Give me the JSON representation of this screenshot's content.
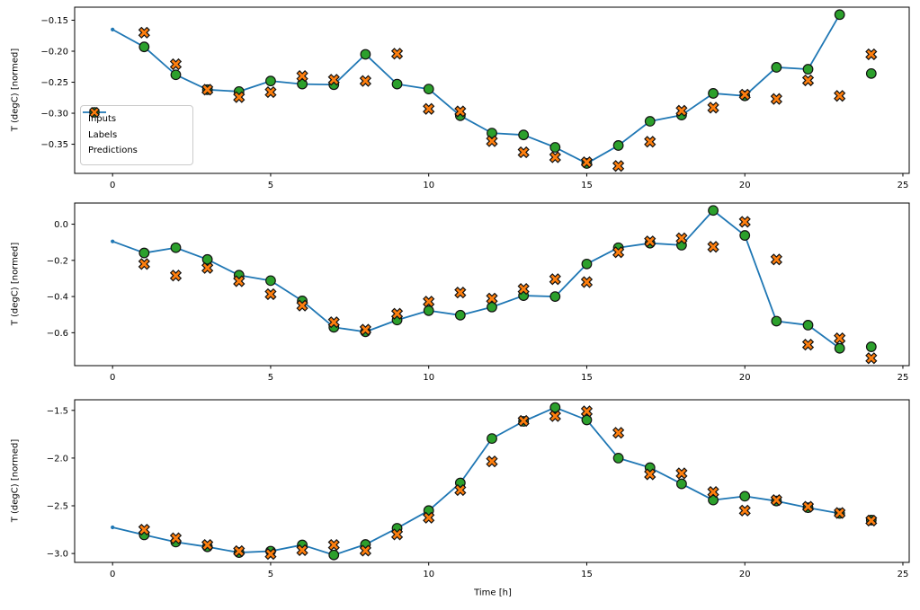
{
  "figure": {
    "background": "#ffffff",
    "text_color": "#000000",
    "legend": {
      "position": "inside-upper-left-panel-1",
      "items": [
        {
          "label": "Inputs",
          "marker": "line-with-dot",
          "color": "#1f77b4"
        },
        {
          "label": "Labels",
          "marker": "circle",
          "color": "#2ca02c"
        },
        {
          "label": "Predictions",
          "marker": "x-cross",
          "color": "#ff7f0e"
        }
      ]
    }
  },
  "chart_data": [
    {
      "type": "line",
      "panel": "top",
      "title": "",
      "xlabel": "",
      "ylabel": "T (degC) [normed]",
      "xlim": [
        -1.2,
        25.2
      ],
      "ylim": [
        -0.397,
        -0.129
      ],
      "grid": false,
      "x_ticks": [
        {
          "v": 0,
          "label": "0"
        },
        {
          "v": 5,
          "label": "5"
        },
        {
          "v": 10,
          "label": "10"
        },
        {
          "v": 15,
          "label": "15"
        },
        {
          "v": 20,
          "label": "20"
        },
        {
          "v": 25,
          "label": "25"
        }
      ],
      "y_ticks": [
        {
          "v": -0.15,
          "label": "−0.15"
        },
        {
          "v": -0.2,
          "label": "−0.20"
        },
        {
          "v": -0.25,
          "label": "−0.25"
        },
        {
          "v": -0.3,
          "label": "−0.30"
        },
        {
          "v": -0.35,
          "label": "−0.35"
        }
      ],
      "series": [
        {
          "name": "Inputs",
          "type": "line",
          "marker": "dot",
          "color": "#1f77b4",
          "x": [
            0,
            1,
            2,
            3,
            4,
            5,
            6,
            7,
            8,
            9,
            10,
            11,
            12,
            13,
            14,
            15,
            16,
            17,
            18,
            19,
            20,
            21,
            22,
            23
          ],
          "y": [
            -0.165,
            -0.193,
            -0.238,
            -0.262,
            -0.265,
            -0.248,
            -0.253,
            -0.254,
            -0.205,
            -0.253,
            -0.261,
            -0.304,
            -0.332,
            -0.335,
            -0.355,
            -0.381,
            -0.352,
            -0.313,
            -0.303,
            -0.268,
            -0.272,
            -0.226,
            -0.229,
            -0.141
          ]
        },
        {
          "name": "Labels",
          "type": "scatter",
          "marker": "circle",
          "color": "#2ca02c",
          "edge": "#111111",
          "x": [
            1,
            2,
            3,
            4,
            5,
            6,
            7,
            8,
            9,
            10,
            11,
            12,
            13,
            14,
            15,
            16,
            17,
            18,
            19,
            20,
            21,
            22,
            23,
            24
          ],
          "y": [
            -0.193,
            -0.238,
            -0.262,
            -0.265,
            -0.248,
            -0.253,
            -0.254,
            -0.205,
            -0.253,
            -0.261,
            -0.304,
            -0.332,
            -0.335,
            -0.355,
            -0.381,
            -0.352,
            -0.313,
            -0.303,
            -0.268,
            -0.272,
            -0.226,
            -0.229,
            -0.141,
            -0.236
          ]
        },
        {
          "name": "Predictions",
          "type": "scatter",
          "marker": "X",
          "color": "#ff7f0e",
          "edge": "#111111",
          "x": [
            1,
            2,
            3,
            4,
            5,
            6,
            7,
            8,
            9,
            10,
            11,
            12,
            13,
            14,
            15,
            16,
            17,
            18,
            19,
            20,
            21,
            22,
            23,
            24
          ],
          "y": [
            -0.17,
            -0.221,
            -0.262,
            -0.274,
            -0.266,
            -0.24,
            -0.246,
            -0.248,
            -0.204,
            -0.293,
            -0.297,
            -0.345,
            -0.363,
            -0.371,
            -0.379,
            -0.385,
            -0.346,
            -0.296,
            -0.291,
            -0.27,
            -0.277,
            -0.247,
            -0.272,
            -0.205
          ]
        }
      ]
    },
    {
      "type": "line",
      "panel": "middle",
      "title": "",
      "xlabel": "",
      "ylabel": "T (degC) [normed]",
      "xlim": [
        -1.2,
        25.2
      ],
      "ylim": [
        -0.782,
        0.117
      ],
      "grid": false,
      "x_ticks": [
        {
          "v": 0,
          "label": "0"
        },
        {
          "v": 5,
          "label": "5"
        },
        {
          "v": 10,
          "label": "10"
        },
        {
          "v": 15,
          "label": "15"
        },
        {
          "v": 20,
          "label": "20"
        },
        {
          "v": 25,
          "label": "25"
        }
      ],
      "y_ticks": [
        {
          "v": 0.0,
          "label": "0.0"
        },
        {
          "v": -0.2,
          "label": "−0.2"
        },
        {
          "v": -0.4,
          "label": "−0.4"
        },
        {
          "v": -0.6,
          "label": "−0.6"
        }
      ],
      "series": [
        {
          "name": "Inputs",
          "type": "line",
          "marker": "dot",
          "color": "#1f77b4",
          "x": [
            0,
            1,
            2,
            3,
            4,
            5,
            6,
            7,
            8,
            9,
            10,
            11,
            12,
            13,
            14,
            15,
            16,
            17,
            18,
            19,
            20,
            21,
            22,
            23
          ],
          "y": [
            -0.095,
            -0.159,
            -0.13,
            -0.195,
            -0.282,
            -0.312,
            -0.424,
            -0.57,
            -0.595,
            -0.53,
            -0.478,
            -0.503,
            -0.458,
            -0.395,
            -0.4,
            -0.22,
            -0.13,
            -0.105,
            -0.116,
            0.076,
            -0.062,
            -0.536,
            -0.558,
            -0.686
          ]
        },
        {
          "name": "Labels",
          "type": "scatter",
          "marker": "circle",
          "color": "#2ca02c",
          "edge": "#111111",
          "x": [
            1,
            2,
            3,
            4,
            5,
            6,
            7,
            8,
            9,
            10,
            11,
            12,
            13,
            14,
            15,
            16,
            17,
            18,
            19,
            20,
            21,
            22,
            23,
            24
          ],
          "y": [
            -0.159,
            -0.13,
            -0.195,
            -0.282,
            -0.312,
            -0.424,
            -0.57,
            -0.595,
            -0.53,
            -0.478,
            -0.503,
            -0.458,
            -0.395,
            -0.4,
            -0.22,
            -0.13,
            -0.105,
            -0.116,
            0.076,
            -0.062,
            -0.536,
            -0.558,
            -0.686,
            -0.678
          ]
        },
        {
          "name": "Predictions",
          "type": "scatter",
          "marker": "X",
          "color": "#ff7f0e",
          "edge": "#111111",
          "x": [
            1,
            2,
            3,
            4,
            5,
            6,
            7,
            8,
            9,
            10,
            11,
            12,
            13,
            14,
            15,
            16,
            17,
            18,
            19,
            20,
            21,
            22,
            23,
            24
          ],
          "y": [
            -0.22,
            -0.284,
            -0.242,
            -0.315,
            -0.387,
            -0.45,
            -0.542,
            -0.583,
            -0.495,
            -0.428,
            -0.378,
            -0.411,
            -0.358,
            -0.304,
            -0.32,
            -0.155,
            -0.095,
            -0.078,
            -0.125,
            0.013,
            -0.195,
            -0.666,
            -0.631,
            -0.741
          ]
        }
      ]
    },
    {
      "type": "line",
      "panel": "bottom",
      "title": "",
      "xlabel": "Time [h]",
      "ylabel": "T (degC) [normed]",
      "xlim": [
        -1.2,
        25.2
      ],
      "ylim": [
        -3.093,
        -1.389
      ],
      "grid": false,
      "x_ticks": [
        {
          "v": 0,
          "label": "0"
        },
        {
          "v": 5,
          "label": "5"
        },
        {
          "v": 10,
          "label": "10"
        },
        {
          "v": 15,
          "label": "15"
        },
        {
          "v": 20,
          "label": "20"
        },
        {
          "v": 25,
          "label": "25"
        }
      ],
      "y_ticks": [
        {
          "v": -1.5,
          "label": "−1.5"
        },
        {
          "v": -2.0,
          "label": "−2.0"
        },
        {
          "v": -2.5,
          "label": "−2.5"
        },
        {
          "v": -3.0,
          "label": "−3.0"
        }
      ],
      "series": [
        {
          "name": "Inputs",
          "type": "line",
          "marker": "dot",
          "color": "#1f77b4",
          "x": [
            0,
            1,
            2,
            3,
            4,
            5,
            6,
            7,
            8,
            9,
            10,
            11,
            12,
            13,
            14,
            15,
            16,
            17,
            18,
            19,
            20,
            21,
            22,
            23
          ],
          "y": [
            -2.726,
            -2.805,
            -2.88,
            -2.93,
            -2.99,
            -2.975,
            -2.91,
            -3.015,
            -2.905,
            -2.735,
            -2.55,
            -2.26,
            -1.795,
            -1.615,
            -1.47,
            -1.6,
            -2.0,
            -2.1,
            -2.27,
            -2.44,
            -2.4,
            -2.45,
            -2.52,
            -2.58
          ]
        },
        {
          "name": "Labels",
          "type": "scatter",
          "marker": "circle",
          "color": "#2ca02c",
          "edge": "#111111",
          "x": [
            1,
            2,
            3,
            4,
            5,
            6,
            7,
            8,
            9,
            10,
            11,
            12,
            13,
            14,
            15,
            16,
            17,
            18,
            19,
            20,
            21,
            22,
            23,
            24
          ],
          "y": [
            -2.805,
            -2.88,
            -2.93,
            -2.99,
            -2.975,
            -2.91,
            -3.015,
            -2.905,
            -2.735,
            -2.55,
            -2.26,
            -1.795,
            -1.615,
            -1.47,
            -1.6,
            -2.0,
            -2.1,
            -2.27,
            -2.44,
            -2.4,
            -2.45,
            -2.52,
            -2.58,
            -2.65
          ]
        },
        {
          "name": "Predictions",
          "type": "scatter",
          "marker": "X",
          "color": "#ff7f0e",
          "edge": "#111111",
          "x": [
            1,
            2,
            3,
            4,
            5,
            6,
            7,
            8,
            9,
            10,
            11,
            12,
            13,
            14,
            15,
            16,
            17,
            18,
            19,
            20,
            21,
            22,
            23,
            24
          ],
          "y": [
            -2.75,
            -2.84,
            -2.91,
            -2.975,
            -3.005,
            -2.965,
            -2.91,
            -2.97,
            -2.8,
            -2.625,
            -2.335,
            -2.035,
            -1.61,
            -1.56,
            -1.51,
            -1.735,
            -2.17,
            -2.16,
            -2.355,
            -2.55,
            -2.44,
            -2.51,
            -2.575,
            -2.655
          ]
        }
      ]
    }
  ]
}
